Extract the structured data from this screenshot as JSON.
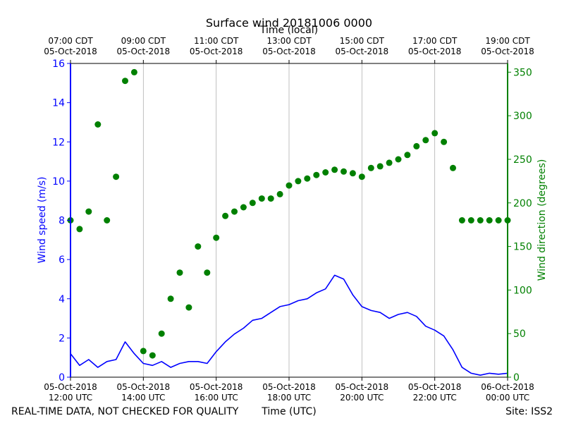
{
  "chart_data": {
    "type": "line+scatter",
    "title": "Surface wind 20181006 0000",
    "top_axis_label": "Time (local)",
    "xlabel": "Time (UTC)",
    "ylabel_left": "Wind speed (m/s)",
    "ylabel_right": "Wind direction (degrees)",
    "footer_left": "REAL-TIME DATA, NOT CHECKED FOR QUALITY",
    "footer_right": "Site: ISS2",
    "x_range_hours_utc": [
      12,
      24
    ],
    "ylim_left": [
      0,
      16
    ],
    "ylim_right": [
      0,
      360
    ],
    "grid": "vertical",
    "left_ticks": [
      0,
      2,
      4,
      6,
      8,
      10,
      12,
      14,
      16
    ],
    "right_ticks": [
      0,
      50,
      100,
      150,
      200,
      250,
      300,
      350
    ],
    "bottom_ticks": [
      {
        "h": 12,
        "l1": "05-Oct-2018",
        "l2": "12:00 UTC"
      },
      {
        "h": 14,
        "l1": "05-Oct-2018",
        "l2": "14:00 UTC"
      },
      {
        "h": 16,
        "l1": "05-Oct-2018",
        "l2": "16:00 UTC"
      },
      {
        "h": 18,
        "l1": "05-Oct-2018",
        "l2": "18:00 UTC"
      },
      {
        "h": 20,
        "l1": "05-Oct-2018",
        "l2": "20:00 UTC"
      },
      {
        "h": 22,
        "l1": "05-Oct-2018",
        "l2": "22:00 UTC"
      },
      {
        "h": 24,
        "l1": "06-Oct-2018",
        "l2": "00:00 UTC"
      }
    ],
    "top_ticks": [
      {
        "h": 12,
        "l1": "07:00 CDT",
        "l2": "05-Oct-2018"
      },
      {
        "h": 14,
        "l1": "09:00 CDT",
        "l2": "05-Oct-2018"
      },
      {
        "h": 16,
        "l1": "11:00 CDT",
        "l2": "05-Oct-2018"
      },
      {
        "h": 18,
        "l1": "13:00 CDT",
        "l2": "05-Oct-2018"
      },
      {
        "h": 20,
        "l1": "15:00 CDT",
        "l2": "05-Oct-2018"
      },
      {
        "h": 22,
        "l1": "17:00 CDT",
        "l2": "05-Oct-2018"
      },
      {
        "h": 24,
        "l1": "19:00 CDT",
        "l2": "05-Oct-2018"
      }
    ],
    "series": [
      {
        "name": "Wind speed",
        "axis": "left",
        "style": "line",
        "color": "#0000ff",
        "x_hours": [
          12.0,
          12.25,
          12.5,
          12.75,
          13.0,
          13.25,
          13.5,
          13.75,
          14.0,
          14.25,
          14.5,
          14.75,
          15.0,
          15.25,
          15.5,
          15.75,
          16.0,
          16.25,
          16.5,
          16.75,
          17.0,
          17.25,
          17.5,
          17.75,
          18.0,
          18.25,
          18.5,
          18.75,
          19.0,
          19.25,
          19.5,
          19.75,
          20.0,
          20.25,
          20.5,
          20.75,
          21.0,
          21.25,
          21.5,
          21.75,
          22.0,
          22.25,
          22.5,
          22.75,
          23.0,
          23.25,
          23.5,
          23.75,
          24.0
        ],
        "values": [
          1.2,
          0.6,
          0.9,
          0.5,
          0.8,
          0.9,
          1.8,
          1.2,
          0.7,
          0.6,
          0.8,
          0.5,
          0.7,
          0.8,
          0.8,
          0.7,
          1.3,
          1.8,
          2.2,
          2.5,
          2.9,
          3.0,
          3.3,
          3.6,
          3.7,
          3.9,
          4.0,
          4.3,
          4.5,
          5.2,
          5.0,
          4.2,
          3.6,
          3.4,
          3.3,
          3.0,
          3.2,
          3.3,
          3.1,
          2.6,
          2.4,
          2.1,
          1.4,
          0.5,
          0.2,
          0.1,
          0.2,
          0.15,
          0.2
        ]
      },
      {
        "name": "Wind direction",
        "axis": "right",
        "style": "scatter",
        "color": "#008000",
        "x_hours": [
          12.0,
          12.25,
          12.5,
          12.75,
          13.0,
          13.25,
          13.5,
          13.75,
          14.0,
          14.25,
          14.5,
          14.75,
          15.0,
          15.25,
          15.5,
          15.75,
          16.0,
          16.25,
          16.5,
          16.75,
          17.0,
          17.25,
          17.5,
          17.75,
          18.0,
          18.25,
          18.5,
          18.75,
          19.0,
          19.25,
          19.5,
          19.75,
          20.0,
          20.25,
          20.5,
          20.75,
          21.0,
          21.25,
          21.5,
          21.75,
          22.0,
          22.25,
          22.5,
          22.75,
          23.0,
          23.25,
          23.5,
          23.75,
          24.0
        ],
        "values": [
          180,
          170,
          190,
          290,
          180,
          230,
          340,
          350,
          30,
          25,
          50,
          90,
          120,
          80,
          150,
          120,
          160,
          185,
          190,
          195,
          200,
          205,
          205,
          210,
          220,
          225,
          228,
          232,
          235,
          238,
          236,
          234,
          230,
          240,
          242,
          246,
          250,
          255,
          265,
          272,
          280,
          270,
          240,
          180,
          180,
          180,
          180,
          180,
          180
        ]
      }
    ]
  }
}
